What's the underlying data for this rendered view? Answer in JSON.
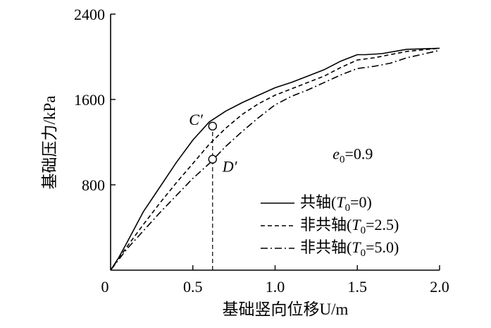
{
  "chart_data": {
    "type": "line",
    "xlabel": "基础竖向位移U/m",
    "ylabel": "基础压力/kPa",
    "xlim": [
      0,
      2.0
    ],
    "ylim": [
      0,
      2400
    ],
    "x_ticks": [
      "0",
      "0.5",
      "1.0",
      "1.5",
      "2.0"
    ],
    "x_tick_values": [
      0,
      0.5,
      1.0,
      1.5,
      2.0
    ],
    "y_ticks": [
      "800",
      "1600",
      "2400"
    ],
    "y_tick_values": [
      800,
      1600,
      2400
    ],
    "grid": false,
    "legend_position": "bottom-right",
    "series": [
      {
        "name": "共轴(T₀=0)",
        "name_parts": {
          "prefix": "共轴(",
          "var": "T",
          "sub": "0",
          "suffix": "=0)"
        },
        "dash": "solid",
        "x": [
          0,
          0.05,
          0.1,
          0.2,
          0.3,
          0.4,
          0.5,
          0.6,
          0.65,
          0.7,
          0.8,
          0.9,
          1.0,
          1.1,
          1.2,
          1.3,
          1.4,
          1.5,
          1.55,
          1.65,
          1.8,
          2.0
        ],
        "y": [
          0,
          120,
          260,
          550,
          780,
          1010,
          1220,
          1390,
          1440,
          1490,
          1570,
          1640,
          1710,
          1760,
          1820,
          1880,
          1960,
          2020,
          2020,
          2030,
          2070,
          2080
        ]
      },
      {
        "name": "非共轴(T₀=2.5)",
        "name_parts": {
          "prefix": "非共轴(",
          "var": "T",
          "sub": "0",
          "suffix": "=2.5)"
        },
        "dash": "dashed",
        "x": [
          0,
          0.1,
          0.2,
          0.3,
          0.4,
          0.5,
          0.6,
          0.7,
          0.8,
          0.9,
          1.0,
          1.1,
          1.2,
          1.3,
          1.4,
          1.5,
          1.6,
          1.7,
          1.8,
          2.0
        ],
        "y": [
          0,
          220,
          430,
          630,
          820,
          1000,
          1180,
          1330,
          1460,
          1560,
          1640,
          1700,
          1760,
          1820,
          1900,
          1970,
          1990,
          2020,
          2050,
          2080
        ]
      },
      {
        "name": "非共轴(T₀=5.0)",
        "name_parts": {
          "prefix": "非共轴(",
          "var": "T",
          "sub": "0",
          "suffix": "=5.0)"
        },
        "dash": "dashdot",
        "x": [
          0,
          0.1,
          0.2,
          0.3,
          0.4,
          0.5,
          0.6,
          0.7,
          0.8,
          0.9,
          1.0,
          1.1,
          1.2,
          1.3,
          1.4,
          1.5,
          1.6,
          1.7,
          1.8,
          2.0
        ],
        "y": [
          0,
          200,
          370,
          540,
          700,
          860,
          1000,
          1160,
          1300,
          1430,
          1550,
          1630,
          1690,
          1760,
          1830,
          1890,
          1910,
          1940,
          1990,
          2060
        ]
      }
    ],
    "annotations": [
      {
        "label": "C′",
        "x": 0.62,
        "y": 1350,
        "marker": "open-circle",
        "label_side": "left"
      },
      {
        "label": "D′",
        "x": 0.62,
        "y": 1040,
        "marker": "open-circle",
        "label_side": "right"
      }
    ],
    "guide_line": {
      "x": 0.62,
      "y_from": 0,
      "y_to": 1350,
      "style": "dashed"
    },
    "text_annotation": {
      "var": "e",
      "sub": "0",
      "suffix": "=0.9",
      "x": 1.35,
      "y": 1040
    }
  }
}
